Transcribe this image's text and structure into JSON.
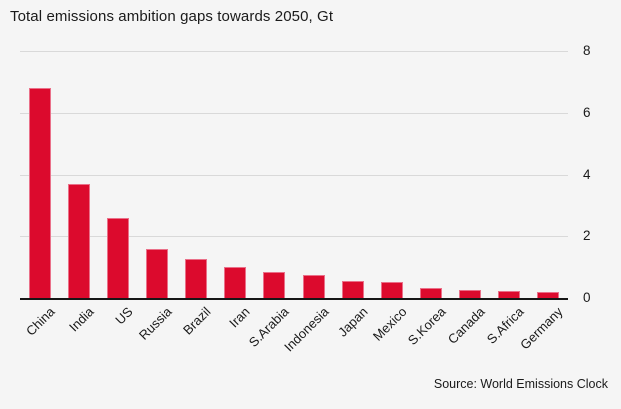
{
  "title": "Total emissions ambition gaps towards 2050, Gt",
  "source_label": "Source: World Emissions Clock",
  "colors": {
    "background": "#f5f5f5",
    "bar_fill": "#dc0a2d",
    "bar_border": "#ea7089",
    "gridline": "#d9d9d9",
    "axis_line": "#161616",
    "text": "#1a1a1a"
  },
  "chart_data": {
    "type": "bar",
    "title": "Total emissions ambition gaps towards 2050, Gt",
    "categories": [
      "China",
      "India",
      "US",
      "Russia",
      "Brazil",
      "Iran",
      "S.Arabia",
      "Indonesia",
      "Japan",
      "Mexico",
      "S.Korea",
      "Canada",
      "S.Africa",
      "Germany"
    ],
    "values": [
      6.8,
      3.7,
      2.6,
      1.6,
      1.25,
      1.0,
      0.85,
      0.75,
      0.55,
      0.52,
      0.33,
      0.26,
      0.23,
      0.21
    ],
    "xlabel": "",
    "ylabel": "Gt",
    "ylim": [
      0,
      8
    ],
    "yticks": [
      0,
      2,
      4,
      6,
      8
    ],
    "ytick_side": "right",
    "grid": true,
    "legend": "none",
    "bar_color": "#dc0a2d",
    "source": "Source: World Emissions Clock"
  }
}
